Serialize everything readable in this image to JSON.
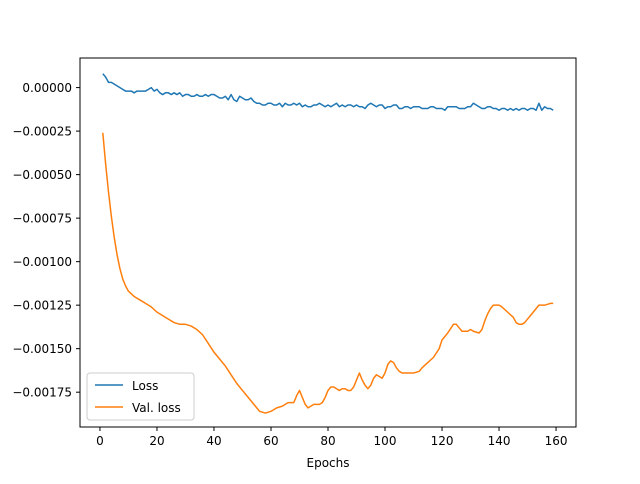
{
  "chart_data": {
    "type": "line",
    "title": "",
    "xlabel": "Epochs",
    "ylabel": "",
    "xlim": [
      -7,
      167
    ],
    "ylim": [
      -0.00195,
      0.00017
    ],
    "xticks": [
      0,
      20,
      40,
      60,
      80,
      100,
      120,
      140,
      160
    ],
    "xtick_labels": [
      "0",
      "20",
      "40",
      "60",
      "80",
      "100",
      "120",
      "140",
      "160"
    ],
    "yticks": [
      0.0,
      -0.00025,
      -0.0005,
      -0.00075,
      -0.001,
      -0.00125,
      -0.0015,
      -0.00175
    ],
    "ytick_labels": [
      "0.00000",
      "−0.00025",
      "−0.00050",
      "−0.00075",
      "−0.00100",
      "−0.00125",
      "−0.00150",
      "−0.00175"
    ],
    "grid": false,
    "legend_position": "lower-left",
    "series": [
      {
        "name": "Loss",
        "color": "#1f77b4",
        "points": [
          [
            1,
            8e-05
          ],
          [
            2,
            6e-05
          ],
          [
            3,
            3e-05
          ],
          [
            4,
            3e-05
          ],
          [
            5,
            2e-05
          ],
          [
            6,
            1e-05
          ],
          [
            7,
            0.0
          ],
          [
            8,
            -1e-05
          ],
          [
            9,
            -2e-05
          ],
          [
            10,
            -2e-05
          ],
          [
            11,
            -2e-05
          ],
          [
            12,
            -3e-05
          ],
          [
            13,
            -2e-05
          ],
          [
            14,
            -2e-05
          ],
          [
            15,
            -2e-05
          ],
          [
            16,
            -2e-05
          ],
          [
            17,
            -1e-05
          ],
          [
            18,
            0.0
          ],
          [
            19,
            -2e-05
          ],
          [
            20,
            -1e-05
          ],
          [
            21,
            -3e-05
          ],
          [
            22,
            -4e-05
          ],
          [
            23,
            -3e-05
          ],
          [
            24,
            -3e-05
          ],
          [
            25,
            -4e-05
          ],
          [
            26,
            -3e-05
          ],
          [
            27,
            -4e-05
          ],
          [
            28,
            -3e-05
          ],
          [
            29,
            -5e-05
          ],
          [
            30,
            -4e-05
          ],
          [
            31,
            -4e-05
          ],
          [
            32,
            -5e-05
          ],
          [
            33,
            -5e-05
          ],
          [
            34,
            -4e-05
          ],
          [
            35,
            -5e-05
          ],
          [
            36,
            -5e-05
          ],
          [
            37,
            -4e-05
          ],
          [
            38,
            -5e-05
          ],
          [
            39,
            -4e-05
          ],
          [
            40,
            -4e-05
          ],
          [
            41,
            -5e-05
          ],
          [
            42,
            -6e-05
          ],
          [
            43,
            -6e-05
          ],
          [
            44,
            -5e-05
          ],
          [
            45,
            -7e-05
          ],
          [
            46,
            -4e-05
          ],
          [
            47,
            -7e-05
          ],
          [
            48,
            -8e-05
          ],
          [
            49,
            -5e-05
          ],
          [
            50,
            -6e-05
          ],
          [
            51,
            -7e-05
          ],
          [
            52,
            -7e-05
          ],
          [
            53,
            -6e-05
          ],
          [
            54,
            -8e-05
          ],
          [
            55,
            -9e-05
          ],
          [
            56,
            -9e-05
          ],
          [
            57,
            -0.0001
          ],
          [
            58,
            -0.0001
          ],
          [
            59,
            -9e-05
          ],
          [
            60,
            -9e-05
          ],
          [
            61,
            -0.0001
          ],
          [
            62,
            -0.0001
          ],
          [
            63,
            -9e-05
          ],
          [
            64,
            -0.00011
          ],
          [
            65,
            -9e-05
          ],
          [
            66,
            -0.0001
          ],
          [
            67,
            -0.0001
          ],
          [
            68,
            -9e-05
          ],
          [
            69,
            -0.0001
          ],
          [
            70,
            -9e-05
          ],
          [
            71,
            -0.00011
          ],
          [
            72,
            -0.0001
          ],
          [
            73,
            -0.00011
          ],
          [
            74,
            -0.00011
          ],
          [
            75,
            -0.0001
          ],
          [
            76,
            -0.0001
          ],
          [
            77,
            -9e-05
          ],
          [
            78,
            -0.0001
          ],
          [
            79,
            -0.00011
          ],
          [
            80,
            -0.0001
          ],
          [
            81,
            -0.00011
          ],
          [
            82,
            -0.0001
          ],
          [
            83,
            -9e-05
          ],
          [
            84,
            -0.00011
          ],
          [
            85,
            -0.0001
          ],
          [
            86,
            -0.00011
          ],
          [
            87,
            -0.0001
          ],
          [
            88,
            -0.0001
          ],
          [
            89,
            -0.00011
          ],
          [
            90,
            -0.0001
          ],
          [
            91,
            -0.00011
          ],
          [
            92,
            -0.00011
          ],
          [
            93,
            -0.00012
          ],
          [
            94,
            -0.0001
          ],
          [
            95,
            -9e-05
          ],
          [
            96,
            -0.0001
          ],
          [
            97,
            -0.00011
          ],
          [
            98,
            -0.0001
          ],
          [
            99,
            -0.0001
          ],
          [
            100,
            -0.00012
          ],
          [
            101,
            -0.00011
          ],
          [
            102,
            -0.00011
          ],
          [
            103,
            -0.0001
          ],
          [
            104,
            -0.0001
          ],
          [
            105,
            -0.00012
          ],
          [
            106,
            -0.00012
          ],
          [
            107,
            -0.00011
          ],
          [
            108,
            -0.00011
          ],
          [
            109,
            -0.00012
          ],
          [
            110,
            -0.00011
          ],
          [
            111,
            -0.00011
          ],
          [
            112,
            -0.00011
          ],
          [
            113,
            -0.00012
          ],
          [
            114,
            -0.00012
          ],
          [
            115,
            -0.00012
          ],
          [
            116,
            -0.00011
          ],
          [
            117,
            -0.00011
          ],
          [
            118,
            -0.00012
          ],
          [
            119,
            -0.00012
          ],
          [
            120,
            -0.00012
          ],
          [
            121,
            -0.00013
          ],
          [
            122,
            -0.00011
          ],
          [
            123,
            -0.00011
          ],
          [
            124,
            -0.00011
          ],
          [
            125,
            -0.00011
          ],
          [
            126,
            -0.00012
          ],
          [
            127,
            -0.00012
          ],
          [
            128,
            -0.00012
          ],
          [
            129,
            -0.00011
          ],
          [
            130,
            -0.00011
          ],
          [
            131,
            -9e-05
          ],
          [
            132,
            -0.0001
          ],
          [
            133,
            -0.00011
          ],
          [
            134,
            -0.00012
          ],
          [
            135,
            -0.00012
          ],
          [
            136,
            -0.00011
          ],
          [
            137,
            -0.00011
          ],
          [
            138,
            -0.00012
          ],
          [
            139,
            -0.00012
          ],
          [
            140,
            -0.00013
          ],
          [
            141,
            -0.00012
          ],
          [
            142,
            -0.00012
          ],
          [
            143,
            -0.00013
          ],
          [
            144,
            -0.00012
          ],
          [
            145,
            -0.00013
          ],
          [
            146,
            -0.00012
          ],
          [
            147,
            -0.00013
          ],
          [
            148,
            -0.00012
          ],
          [
            149,
            -0.00012
          ],
          [
            150,
            -0.00013
          ],
          [
            151,
            -0.00012
          ],
          [
            152,
            -0.00012
          ],
          [
            153,
            -0.00013
          ],
          [
            154,
            -9e-05
          ],
          [
            155,
            -0.00013
          ],
          [
            156,
            -0.00011
          ],
          [
            157,
            -0.00012
          ],
          [
            158,
            -0.00012
          ],
          [
            159,
            -0.00013
          ]
        ]
      },
      {
        "name": "Val. loss",
        "color": "#ff7f0e",
        "points": [
          [
            1,
            -0.00026
          ],
          [
            2,
            -0.00044
          ],
          [
            3,
            -0.0006
          ],
          [
            4,
            -0.00074
          ],
          [
            5,
            -0.00086
          ],
          [
            6,
            -0.00096
          ],
          [
            7,
            -0.00104
          ],
          [
            8,
            -0.0011
          ],
          [
            9,
            -0.00114
          ],
          [
            10,
            -0.00117
          ],
          [
            12,
            -0.0012
          ],
          [
            14,
            -0.00122
          ],
          [
            16,
            -0.00124
          ],
          [
            18,
            -0.00126
          ],
          [
            20,
            -0.00129
          ],
          [
            22,
            -0.00131
          ],
          [
            24,
            -0.00133
          ],
          [
            26,
            -0.00135
          ],
          [
            28,
            -0.00136
          ],
          [
            30,
            -0.00136
          ],
          [
            32,
            -0.00137
          ],
          [
            34,
            -0.00139
          ],
          [
            36,
            -0.00142
          ],
          [
            38,
            -0.00147
          ],
          [
            40,
            -0.00152
          ],
          [
            42,
            -0.00156
          ],
          [
            44,
            -0.0016
          ],
          [
            46,
            -0.00165
          ],
          [
            48,
            -0.0017
          ],
          [
            50,
            -0.00174
          ],
          [
            52,
            -0.00178
          ],
          [
            54,
            -0.00182
          ],
          [
            56,
            -0.00186
          ],
          [
            58,
            -0.00187
          ],
          [
            60,
            -0.00186
          ],
          [
            62,
            -0.00184
          ],
          [
            64,
            -0.00183
          ],
          [
            66,
            -0.00181
          ],
          [
            68,
            -0.00181
          ],
          [
            69,
            -0.00177
          ],
          [
            70,
            -0.00174
          ],
          [
            71,
            -0.00178
          ],
          [
            72,
            -0.00182
          ],
          [
            73,
            -0.00184
          ],
          [
            74,
            -0.00183
          ],
          [
            75,
            -0.00182
          ],
          [
            77,
            -0.00182
          ],
          [
            78,
            -0.00181
          ],
          [
            79,
            -0.00178
          ],
          [
            80,
            -0.00174
          ],
          [
            81,
            -0.00172
          ],
          [
            82,
            -0.00172
          ],
          [
            83,
            -0.00173
          ],
          [
            84,
            -0.00174
          ],
          [
            85,
            -0.00173
          ],
          [
            86,
            -0.00173
          ],
          [
            87,
            -0.00174
          ],
          [
            88,
            -0.00174
          ],
          [
            89,
            -0.00172
          ],
          [
            90,
            -0.00168
          ],
          [
            91,
            -0.00164
          ],
          [
            92,
            -0.00168
          ],
          [
            93,
            -0.00171
          ],
          [
            94,
            -0.00173
          ],
          [
            95,
            -0.00171
          ],
          [
            96,
            -0.00167
          ],
          [
            97,
            -0.00165
          ],
          [
            98,
            -0.00166
          ],
          [
            99,
            -0.00167
          ],
          [
            100,
            -0.00164
          ],
          [
            101,
            -0.00159
          ],
          [
            102,
            -0.00157
          ],
          [
            103,
            -0.00158
          ],
          [
            104,
            -0.00161
          ],
          [
            105,
            -0.00163
          ],
          [
            106,
            -0.00164
          ],
          [
            108,
            -0.00164
          ],
          [
            110,
            -0.00164
          ],
          [
            112,
            -0.00163
          ],
          [
            113,
            -0.00161
          ],
          [
            115,
            -0.00158
          ],
          [
            117,
            -0.00155
          ],
          [
            119,
            -0.0015
          ],
          [
            120,
            -0.00145
          ],
          [
            122,
            -0.00141
          ],
          [
            124,
            -0.00136
          ],
          [
            125,
            -0.00136
          ],
          [
            126,
            -0.00138
          ],
          [
            127,
            -0.0014
          ],
          [
            129,
            -0.0014
          ],
          [
            130,
            -0.00139
          ],
          [
            131,
            -0.0014
          ],
          [
            133,
            -0.00141
          ],
          [
            134,
            -0.00139
          ],
          [
            135,
            -0.00134
          ],
          [
            136,
            -0.0013
          ],
          [
            137,
            -0.00127
          ],
          [
            138,
            -0.00125
          ],
          [
            140,
            -0.00125
          ],
          [
            141,
            -0.00126
          ],
          [
            143,
            -0.00129
          ],
          [
            145,
            -0.00132
          ],
          [
            146,
            -0.00135
          ],
          [
            147,
            -0.00136
          ],
          [
            148,
            -0.00136
          ],
          [
            149,
            -0.00135
          ],
          [
            150,
            -0.00133
          ],
          [
            151,
            -0.00131
          ],
          [
            152,
            -0.00129
          ],
          [
            153,
            -0.00127
          ],
          [
            154,
            -0.00125
          ],
          [
            156,
            -0.00125
          ],
          [
            158,
            -0.00124
          ],
          [
            159,
            -0.00124
          ]
        ]
      }
    ]
  }
}
